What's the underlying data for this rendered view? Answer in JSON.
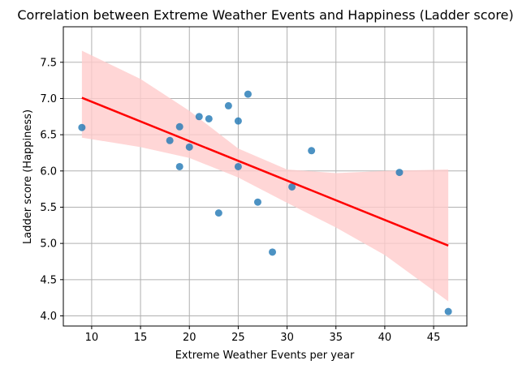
{
  "chart_data": {
    "type": "scatter",
    "title": "Correlation between Extreme Weather Events and Happiness (Ladder score)",
    "xlabel": "Extreme Weather Events per year",
    "ylabel": "Ladder score (Happiness)",
    "xlim": [
      7.1,
      48.4
    ],
    "ylim": [
      3.86,
      7.99
    ],
    "xticks": [
      10,
      15,
      20,
      25,
      30,
      35,
      40,
      45
    ],
    "yticks": [
      4.0,
      4.5,
      5.0,
      5.5,
      6.0,
      6.5,
      7.0,
      7.5
    ],
    "grid": true,
    "points": [
      {
        "x": 9.0,
        "y": 6.6
      },
      {
        "x": 18.0,
        "y": 6.42
      },
      {
        "x": 19.0,
        "y": 6.61
      },
      {
        "x": 19.0,
        "y": 6.06
      },
      {
        "x": 20.0,
        "y": 6.33
      },
      {
        "x": 21.0,
        "y": 6.75
      },
      {
        "x": 22.0,
        "y": 6.72
      },
      {
        "x": 23.0,
        "y": 5.42
      },
      {
        "x": 24.0,
        "y": 6.9
      },
      {
        "x": 25.0,
        "y": 6.69
      },
      {
        "x": 25.0,
        "y": 6.06
      },
      {
        "x": 26.0,
        "y": 7.06
      },
      {
        "x": 27.0,
        "y": 5.57
      },
      {
        "x": 28.5,
        "y": 4.88
      },
      {
        "x": 30.5,
        "y": 5.78
      },
      {
        "x": 32.5,
        "y": 6.28
      },
      {
        "x": 41.5,
        "y": 5.98
      },
      {
        "x": 46.5,
        "y": 4.06
      }
    ],
    "regression": {
      "x": [
        9.0,
        46.5
      ],
      "y": [
        7.01,
        4.97
      ]
    },
    "confidence_band": {
      "x": [
        9.0,
        15.0,
        20.0,
        25.0,
        30.0,
        35.0,
        40.0,
        46.5
      ],
      "lower": [
        6.46,
        6.33,
        6.18,
        5.91,
        5.56,
        5.22,
        4.84,
        4.2
      ],
      "upper": [
        7.66,
        7.27,
        6.83,
        6.31,
        6.02,
        5.97,
        6.0,
        6.02
      ]
    },
    "colors": {
      "points": "#1f77b4",
      "regression": "#ff0000",
      "band": "#ffcccc",
      "grid": "#b0b0b0"
    }
  }
}
